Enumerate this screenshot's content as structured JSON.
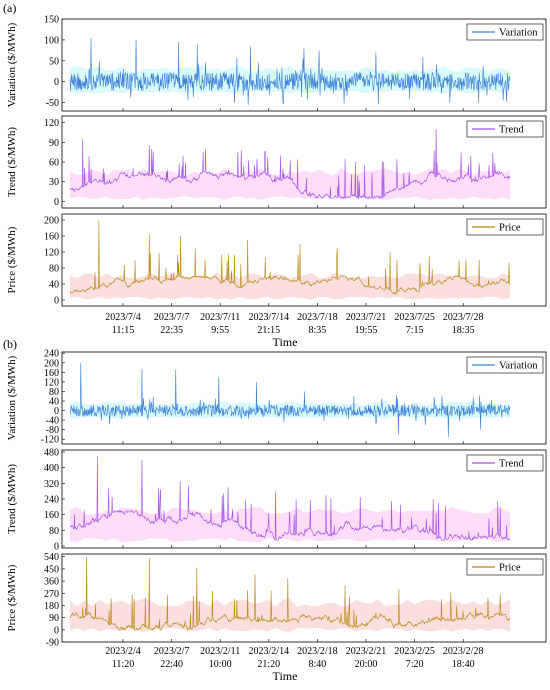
{
  "chart_data": [
    {
      "panel_label": "(a)",
      "type": "line",
      "xlabel": "Time",
      "x_tick_labels": [
        [
          "2023/7/4",
          "11:15"
        ],
        [
          "2023/7/7",
          "22:35"
        ],
        [
          "2023/7/11",
          "9:55"
        ],
        [
          "2023/7/14",
          "21:15"
        ],
        [
          "2023/7/18",
          "8:35"
        ],
        [
          "2023/7/21",
          "19:55"
        ],
        [
          "2023/7/25",
          "7:15"
        ],
        [
          "2023/7/28",
          "18:35"
        ]
      ],
      "x_range": [
        "2023/7/1",
        "2023/7/31"
      ],
      "subplots": [
        {
          "ylabel": "Variation ($/MWh)",
          "legend": "Variation",
          "color": "#3b7fd9",
          "band_color": "#8ef0f0",
          "ylim": [
            -70,
            150
          ],
          "yticks": [
            -50,
            0,
            50,
            100,
            150
          ],
          "baseline": 0,
          "typical_range": [
            -25,
            30
          ],
          "peak_values": [
            105,
            100,
            95,
            90,
            85,
            80,
            75,
            70,
            60,
            -50,
            -45
          ]
        },
        {
          "ylabel": "Trend ($/MWh)",
          "legend": "Trend",
          "color": "#a24de6",
          "band_color": "#ff9ef0",
          "ylim": [
            -10,
            130
          ],
          "yticks": [
            0,
            30,
            60,
            90,
            120
          ],
          "baseline": 20,
          "typical_range": [
            5,
            45
          ],
          "peak_values": [
            95,
            85,
            80,
            75,
            70,
            65,
            60,
            110,
            55
          ]
        },
        {
          "ylabel": "Price ($/MWh)",
          "legend": "Price",
          "color": "#b8860b",
          "band_color": "#f3a0a0",
          "ylim": [
            -15,
            215
          ],
          "yticks": [
            0,
            40,
            80,
            120,
            160,
            200
          ],
          "baseline": 15,
          "typical_range": [
            5,
            60
          ],
          "peak_values": [
            200,
            165,
            160,
            150,
            140,
            130,
            120,
            110,
            100
          ]
        }
      ]
    },
    {
      "panel_label": "(b)",
      "type": "line",
      "xlabel": "Time",
      "x_tick_labels": [
        [
          "2023/2/4",
          "11:20"
        ],
        [
          "2023/2/7",
          "22:40"
        ],
        [
          "2023/2/11",
          "10:00"
        ],
        [
          "2023/2/14",
          "21:20"
        ],
        [
          "2023/2/18",
          "8:40"
        ],
        [
          "2023/2/21",
          "20:00"
        ],
        [
          "2023/2/25",
          "7:20"
        ],
        [
          "2023/2/28",
          "18:40"
        ]
      ],
      "x_range": [
        "2023/2/1",
        "2023/3/2"
      ],
      "subplots": [
        {
          "ylabel": "Variation ($/MWh)",
          "legend": "Variation",
          "color": "#3b7fd9",
          "band_color": "#8ef0f0",
          "ylim": [
            -140,
            245
          ],
          "yticks": [
            -120,
            -80,
            -40,
            0,
            40,
            80,
            120,
            160,
            200,
            240
          ],
          "baseline": 0,
          "typical_range": [
            -30,
            30
          ],
          "peak_values": [
            200,
            175,
            170,
            140,
            120,
            80,
            60,
            -100,
            -110,
            -80
          ]
        },
        {
          "ylabel": "Trend ($/MWh)",
          "legend": "Trend",
          "color": "#a24de6",
          "band_color": "#ff9ef0",
          "ylim": [
            -10,
            490
          ],
          "yticks": [
            0,
            80,
            160,
            240,
            320,
            400,
            480
          ],
          "baseline": 100,
          "typical_range": [
            30,
            180
          ],
          "peak_values": [
            460,
            440,
            330,
            300,
            280,
            260,
            250,
            230,
            220,
            200
          ]
        },
        {
          "ylabel": "Price ($/MWh)",
          "legend": "Price",
          "color": "#b8860b",
          "band_color": "#f3a0a0",
          "ylim": [
            -90,
            560
          ],
          "yticks": [
            -90,
            0,
            90,
            180,
            270,
            360,
            450,
            540
          ],
          "baseline": 100,
          "typical_range": [
            0,
            200
          ],
          "peak_values": [
            540,
            530,
            460,
            410,
            380,
            330,
            300,
            280,
            260
          ]
        }
      ]
    }
  ]
}
